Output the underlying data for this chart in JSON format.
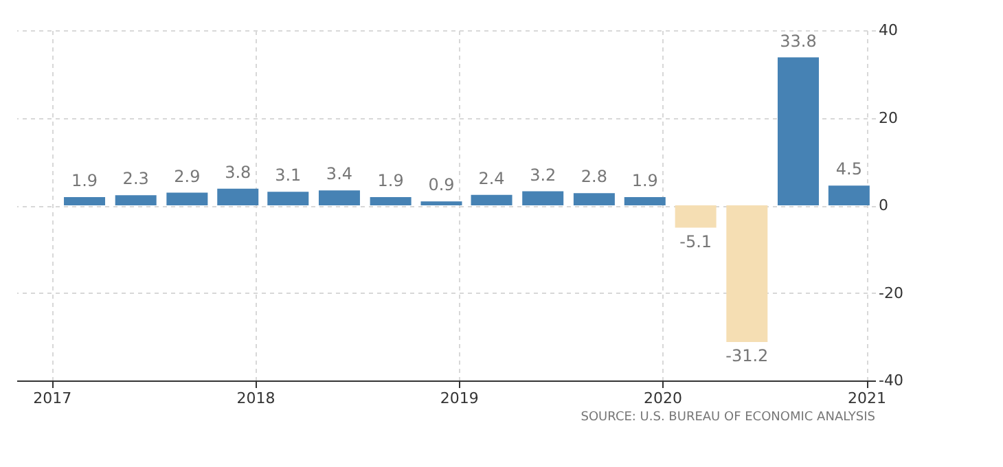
{
  "chart_data": {
    "type": "bar",
    "x": [
      "2017-03",
      "2017-06",
      "2017-09",
      "2017-12",
      "2018-03",
      "2018-06",
      "2018-09",
      "2018-12",
      "2019-03",
      "2019-06",
      "2019-09",
      "2019-12",
      "2020-03",
      "2020-06",
      "2020-09",
      "2020-12"
    ],
    "values": [
      1.9,
      2.3,
      2.9,
      3.8,
      3.1,
      3.4,
      1.9,
      0.9,
      2.4,
      3.2,
      2.8,
      1.9,
      -5.1,
      -31.2,
      33.8,
      4.5
    ],
    "colors": [
      "#4682b4",
      "#4682b4",
      "#4682b4",
      "#4682b4",
      "#4682b4",
      "#4682b4",
      "#4682b4",
      "#4682b4",
      "#4682b4",
      "#4682b4",
      "#4682b4",
      "#4682b4",
      "#f5deb3",
      "#f5deb3",
      "#4682b4",
      "#4682b4"
    ],
    "xlim": [
      "2016-10-30",
      "2021-01-17"
    ],
    "xticks": [
      {
        "value": "2017",
        "label": "2017"
      },
      {
        "value": "2018",
        "label": "2018"
      },
      {
        "value": "2019",
        "label": "2019"
      },
      {
        "value": "2020",
        "label": "2020"
      },
      {
        "value": "2021",
        "label": "2021"
      }
    ],
    "ylim": [
      -40,
      40
    ],
    "yticks": [
      -40,
      -20,
      0,
      20,
      40
    ],
    "grid": true,
    "data_labels": true,
    "annotations": [
      "SOURCE: U.S. BUREAU OF ECONOMIC ANALYSIS"
    ]
  }
}
